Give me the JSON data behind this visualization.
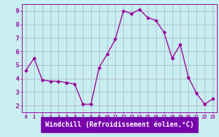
{
  "x": [
    0,
    1,
    2,
    3,
    4,
    5,
    6,
    7,
    8,
    9,
    10,
    11,
    12,
    13,
    14,
    15,
    16,
    17,
    18,
    19,
    20,
    21,
    22,
    23
  ],
  "y": [
    4.6,
    5.5,
    3.9,
    3.8,
    3.8,
    3.7,
    3.6,
    2.1,
    2.1,
    4.8,
    5.8,
    6.9,
    9.0,
    8.8,
    9.1,
    8.5,
    8.3,
    7.4,
    5.5,
    6.5,
    4.1,
    2.9,
    2.1,
    2.5
  ],
  "line_color": "#990099",
  "marker": "D",
  "markersize": 2.5,
  "linewidth": 1.0,
  "bg_color": "#c8eef0",
  "grid_color": "#aaaacc",
  "xlabel": "Windchill (Refroidissement éolien,°C)",
  "xlabel_fontsize": 7,
  "tick_fontsize": 6.5,
  "xlim": [
    -0.5,
    23.5
  ],
  "ylim": [
    1.5,
    9.5
  ],
  "yticks": [
    2,
    3,
    4,
    5,
    6,
    7,
    8,
    9
  ],
  "xticks": [
    0,
    1,
    2,
    3,
    4,
    5,
    6,
    7,
    8,
    9,
    10,
    11,
    12,
    13,
    14,
    15,
    16,
    17,
    18,
    19,
    20,
    21,
    22,
    23
  ],
  "spine_color": "#7700aa",
  "xlabel_bg": "#7700aa"
}
